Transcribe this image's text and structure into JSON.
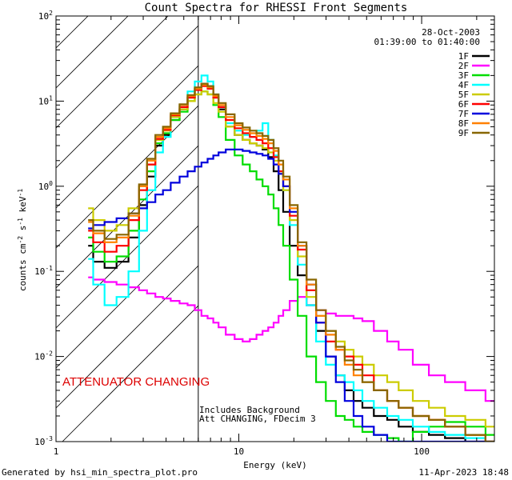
{
  "chart_data": {
    "type": "line",
    "title": "Count Spectra for RHESSI Front Segments",
    "xlabel": "Energy (keV)",
    "ylabel_parts": {
      "pre": "counts cm",
      "e1": "-2",
      "mid1": " s",
      "e2": "-1",
      "mid2": " keV",
      "e3": "-1"
    },
    "x_scale": "log",
    "y_scale": "log",
    "xlim": [
      1,
      250
    ],
    "ylim": [
      0.001,
      100
    ],
    "x_ticks": [
      {
        "v": 1,
        "label": "1"
      },
      {
        "v": 10,
        "label": "10"
      },
      {
        "v": 100,
        "label": "100"
      }
    ],
    "y_ticks": [
      {
        "v": 0.001,
        "base": "10",
        "exp": "-3"
      },
      {
        "v": 0.01,
        "base": "10",
        "exp": "-2"
      },
      {
        "v": 0.1,
        "base": "10",
        "exp": "-1"
      },
      {
        "v": 1,
        "base": "10",
        "exp": "0"
      },
      {
        "v": 10,
        "base": "10",
        "exp": "1"
      },
      {
        "v": 100,
        "base": "10",
        "exp": "2"
      }
    ],
    "date": "28-Oct-2003",
    "time_range": "01:39:00 to 01:40:00",
    "attenuator_boundary_kev": 6,
    "attenuator_note": "ATTENUATOR CHANGING",
    "note_line1": "Includes Background",
    "note_line2": "Att CHANGING, FDecim 3",
    "footer_left": "Generated by hsi_min_spectra_plot.pro",
    "footer_right": "11-Apr-2023 18:48",
    "energies": [
      1.5,
      1.7,
      2.0,
      2.3,
      2.7,
      3.0,
      3.3,
      3.7,
      4.0,
      4.5,
      5.0,
      5.5,
      6.0,
      6.5,
      7.0,
      7.5,
      8.0,
      9.0,
      10.0,
      11.0,
      12.0,
      13.0,
      14.0,
      15.0,
      16.0,
      17.0,
      18.0,
      20.0,
      22.0,
      25.0,
      28.0,
      32.0,
      36.0,
      40.0,
      45.0,
      50.0,
      60.0,
      70.0,
      80.0,
      100.0,
      120.0,
      150.0,
      200.0,
      250.0
    ],
    "series": [
      {
        "name": "1F",
        "color": "#000000",
        "values": [
          0.2,
          0.13,
          0.11,
          0.13,
          0.25,
          0.6,
          1.3,
          3.0,
          4.0,
          6.0,
          8.0,
          11.0,
          14.0,
          16.0,
          15.0,
          11.0,
          8.0,
          5.0,
          4.0,
          3.5,
          3.2,
          3.0,
          2.7,
          2.2,
          1.5,
          0.9,
          0.5,
          0.2,
          0.09,
          0.04,
          0.02,
          0.01,
          0.006,
          0.004,
          0.003,
          0.0025,
          0.002,
          0.0018,
          0.0015,
          0.0013,
          0.0012,
          0.0011,
          0.001,
          0.001
        ]
      },
      {
        "name": "2F",
        "color": "#ff00ff",
        "values": [
          0.085,
          0.08,
          0.075,
          0.07,
          0.065,
          0.06,
          0.055,
          0.05,
          0.048,
          0.045,
          0.042,
          0.04,
          0.035,
          0.03,
          0.028,
          0.025,
          0.022,
          0.018,
          0.016,
          0.015,
          0.016,
          0.018,
          0.02,
          0.022,
          0.025,
          0.03,
          0.035,
          0.045,
          0.05,
          0.04,
          0.035,
          0.032,
          0.03,
          0.03,
          0.028,
          0.026,
          0.02,
          0.015,
          0.012,
          0.008,
          0.006,
          0.005,
          0.004,
          0.003
        ]
      },
      {
        "name": "3F",
        "color": "#00dd00",
        "values": [
          0.25,
          0.17,
          0.13,
          0.15,
          0.3,
          0.7,
          1.5,
          3.2,
          4.2,
          6.0,
          7.5,
          10.0,
          12.0,
          13.0,
          12.0,
          9.0,
          6.5,
          3.5,
          2.3,
          1.8,
          1.5,
          1.2,
          1.0,
          0.8,
          0.55,
          0.35,
          0.2,
          0.08,
          0.03,
          0.01,
          0.005,
          0.003,
          0.002,
          0.0018,
          0.0015,
          0.0013,
          0.0012,
          0.0011,
          0.001,
          0.0013,
          0.0015,
          0.0017,
          0.0015,
          0.0012
        ]
      },
      {
        "name": "4F",
        "color": "#00ffff",
        "values": [
          0.14,
          0.07,
          0.04,
          0.05,
          0.1,
          0.3,
          0.9,
          2.5,
          3.8,
          6.5,
          9.0,
          13.0,
          17.0,
          20.0,
          17.0,
          12.0,
          8.5,
          5.5,
          4.5,
          4.0,
          3.8,
          4.5,
          5.5,
          3.5,
          2.3,
          1.5,
          0.9,
          0.35,
          0.12,
          0.04,
          0.015,
          0.008,
          0.006,
          0.005,
          0.004,
          0.003,
          0.0025,
          0.002,
          0.0018,
          0.0015,
          0.0013,
          0.0012,
          0.0011,
          0.001
        ]
      },
      {
        "name": "5F",
        "color": "#cccc00",
        "values": [
          0.55,
          0.4,
          0.3,
          0.35,
          0.55,
          1.0,
          1.8,
          3.5,
          4.5,
          6.5,
          8.0,
          10.0,
          12.0,
          13.0,
          12.0,
          9.5,
          7.5,
          5.0,
          4.0,
          3.5,
          3.2,
          3.0,
          2.8,
          2.5,
          2.0,
          1.4,
          0.9,
          0.4,
          0.15,
          0.05,
          0.03,
          0.02,
          0.015,
          0.012,
          0.01,
          0.008,
          0.006,
          0.005,
          0.004,
          0.003,
          0.0025,
          0.002,
          0.0018,
          0.0015
        ]
      },
      {
        "name": "6F",
        "color": "#ff0000",
        "values": [
          0.3,
          0.22,
          0.17,
          0.2,
          0.4,
          0.9,
          1.8,
          3.6,
          4.6,
          6.8,
          8.5,
          11.0,
          13.5,
          15.0,
          14.0,
          11.0,
          8.5,
          6.0,
          4.8,
          4.2,
          3.8,
          3.5,
          3.2,
          2.8,
          2.2,
          1.5,
          1.0,
          0.45,
          0.18,
          0.06,
          0.025,
          0.015,
          0.012,
          0.01,
          0.008,
          0.006,
          0.004,
          0.003,
          0.0025,
          0.002,
          0.0018,
          0.0015,
          0.0012,
          0.001
        ]
      },
      {
        "name": "7F",
        "color": "#0000dd",
        "values": [
          0.32,
          0.35,
          0.38,
          0.42,
          0.48,
          0.55,
          0.65,
          0.8,
          0.9,
          1.1,
          1.3,
          1.5,
          1.7,
          1.9,
          2.1,
          2.3,
          2.5,
          2.7,
          2.7,
          2.6,
          2.5,
          2.4,
          2.3,
          2.1,
          1.8,
          1.4,
          1.0,
          0.5,
          0.2,
          0.07,
          0.025,
          0.01,
          0.005,
          0.003,
          0.002,
          0.0015,
          0.0012,
          0.001,
          0.001,
          0.001,
          0.001,
          0.001,
          0.001,
          0.001
        ]
      },
      {
        "name": "8F",
        "color": "#ff8000",
        "values": [
          0.38,
          0.28,
          0.22,
          0.25,
          0.45,
          1.0,
          2.0,
          3.8,
          4.8,
          7.0,
          9.0,
          11.5,
          14.0,
          15.5,
          14.5,
          11.5,
          9.0,
          6.5,
          5.2,
          4.6,
          4.2,
          3.9,
          3.6,
          3.2,
          2.6,
          1.8,
          1.2,
          0.55,
          0.2,
          0.07,
          0.03,
          0.018,
          0.012,
          0.008,
          0.006,
          0.005,
          0.004,
          0.003,
          0.0025,
          0.002,
          0.0018,
          0.0015,
          0.0012,
          0.001
        ]
      },
      {
        "name": "9F",
        "color": "#886600",
        "values": [
          0.4,
          0.3,
          0.24,
          0.27,
          0.48,
          1.05,
          2.1,
          4.0,
          5.0,
          7.2,
          9.2,
          11.8,
          14.5,
          16.0,
          15.0,
          12.0,
          9.5,
          7.0,
          5.5,
          4.9,
          4.5,
          4.2,
          3.9,
          3.5,
          2.8,
          2.0,
          1.3,
          0.6,
          0.22,
          0.08,
          0.035,
          0.02,
          0.013,
          0.009,
          0.007,
          0.005,
          0.004,
          0.003,
          0.0025,
          0.002,
          0.0018,
          0.0015,
          0.0012,
          0.001
        ]
      }
    ]
  }
}
